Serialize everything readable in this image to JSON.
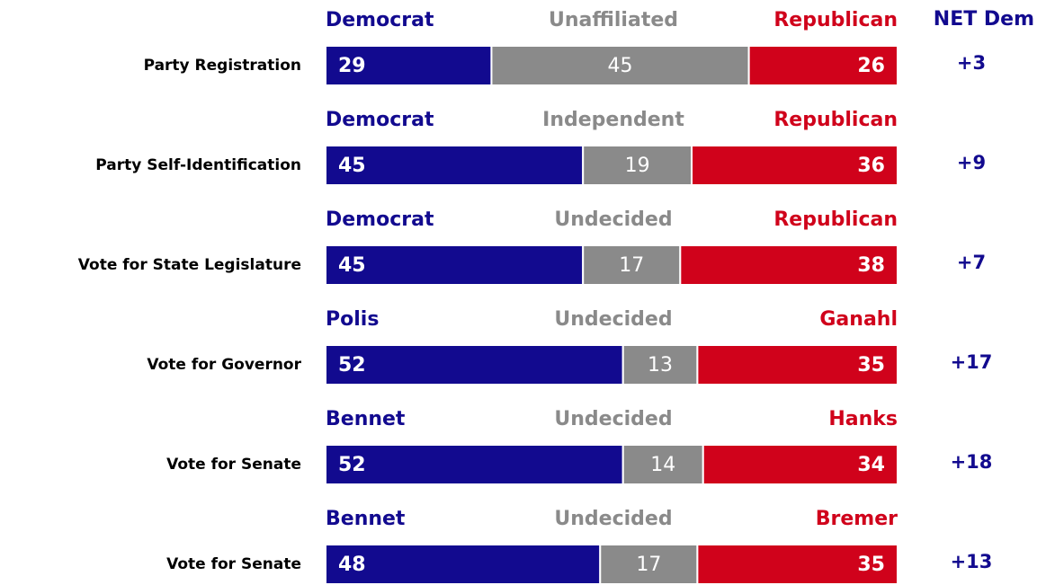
{
  "chart_data": {
    "type": "stacked-bar",
    "net_header": "NET Dem",
    "colors": [
      "#120a8f",
      "#8a8a8a",
      "#d0021b"
    ],
    "xlim": [
      0,
      100
    ],
    "rows": [
      {
        "label": "Party Registration",
        "segments": [
          {
            "name": "Democrat",
            "value": 29
          },
          {
            "name": "Unaffiliated",
            "value": 45
          },
          {
            "name": "Republican",
            "value": 26
          }
        ],
        "net": {
          "value": 3,
          "label": "+3"
        }
      },
      {
        "label": "Party Self-Identification",
        "segments": [
          {
            "name": "Democrat",
            "value": 45
          },
          {
            "name": "Independent",
            "value": 19
          },
          {
            "name": "Republican",
            "value": 36
          }
        ],
        "net": {
          "value": 9,
          "label": "+9"
        }
      },
      {
        "label": "Vote for State Legislature",
        "segments": [
          {
            "name": "Democrat",
            "value": 45
          },
          {
            "name": "Undecided",
            "value": 17
          },
          {
            "name": "Republican",
            "value": 38
          }
        ],
        "net": {
          "value": 7,
          "label": "+7"
        }
      },
      {
        "label": "Vote for Governor",
        "segments": [
          {
            "name": "Polis",
            "value": 52
          },
          {
            "name": "Undecided",
            "value": 13
          },
          {
            "name": "Ganahl",
            "value": 35
          }
        ],
        "net": {
          "value": 17,
          "label": "+17"
        }
      },
      {
        "label": "Vote for Senate",
        "segments": [
          {
            "name": "Bennet",
            "value": 52
          },
          {
            "name": "Undecided",
            "value": 14
          },
          {
            "name": "Hanks",
            "value": 34
          }
        ],
        "net": {
          "value": 18,
          "label": "+18"
        }
      },
      {
        "label": "Vote for Senate",
        "segments": [
          {
            "name": "Bennet",
            "value": 48
          },
          {
            "name": "Undecided",
            "value": 17
          },
          {
            "name": "Bremer",
            "value": 35
          }
        ],
        "net": {
          "value": 13,
          "label": "+13"
        }
      }
    ]
  }
}
